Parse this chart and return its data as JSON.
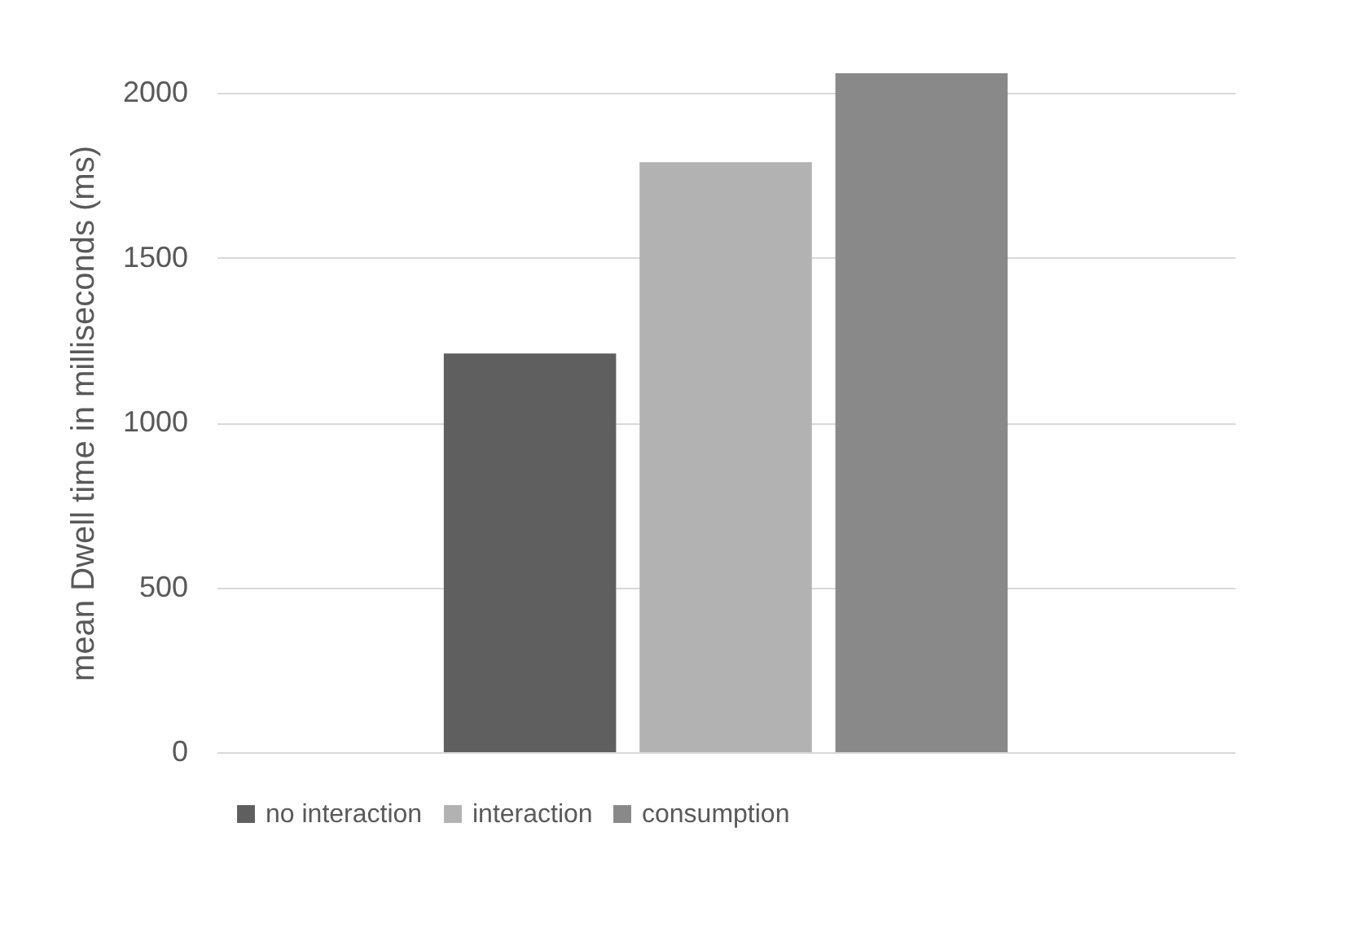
{
  "chart_data": {
    "type": "bar",
    "ylabel": "mean Dwell time in milliseconds (ms)",
    "categories": [
      null
    ],
    "series": [
      {
        "name": "no interaction",
        "color": "#5f5f5f",
        "values": [
          1210
        ]
      },
      {
        "name": "interaction",
        "color": "#b2b2b2",
        "values": [
          1790
        ]
      },
      {
        "name": "consumption",
        "color": "#898989",
        "values": [
          2060
        ]
      }
    ],
    "ylim": [
      0,
      2060
    ],
    "yticks": [
      0,
      500,
      1000,
      1500,
      2000
    ],
    "grid": "y",
    "legend": "bottom"
  }
}
